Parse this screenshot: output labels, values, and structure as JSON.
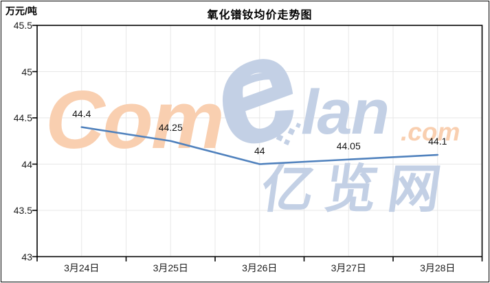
{
  "header": {
    "title": "氧化镨钕均价走势图",
    "unit_label": "万元/吨"
  },
  "watermark": {
    "com": "Com",
    "e": "e",
    "lan": "lan",
    "dotcom": ".com",
    "site_cn": "亿览网",
    "orange_color": "#F9CFB0",
    "blue_color": "#C3D0E5"
  },
  "chart_data": {
    "type": "line",
    "title": "氧化镨钕均价走势图",
    "ylabel": "万元/吨",
    "xlabel": "",
    "categories": [
      "3月24日",
      "3月25日",
      "3月26日",
      "3月27日",
      "3月28日"
    ],
    "series": [
      {
        "name": "氧化镨钕均价",
        "values": [
          44.4,
          44.25,
          44.0,
          44.05,
          44.1
        ]
      }
    ],
    "data_labels": [
      "44.4",
      "44.25",
      "44",
      "44.05",
      "44.1"
    ],
    "ylim": [
      43,
      45.5
    ],
    "ytick_step": 0.5,
    "ytick_labels": [
      "45.5",
      "45",
      "44.5",
      "44",
      "43.5",
      "43"
    ],
    "grid": true,
    "legend": "none",
    "line_color": "#4F81BD",
    "gridline_color": "#E7E7E7",
    "axis_color": "#000000",
    "label_color": "#1A1A1A"
  }
}
